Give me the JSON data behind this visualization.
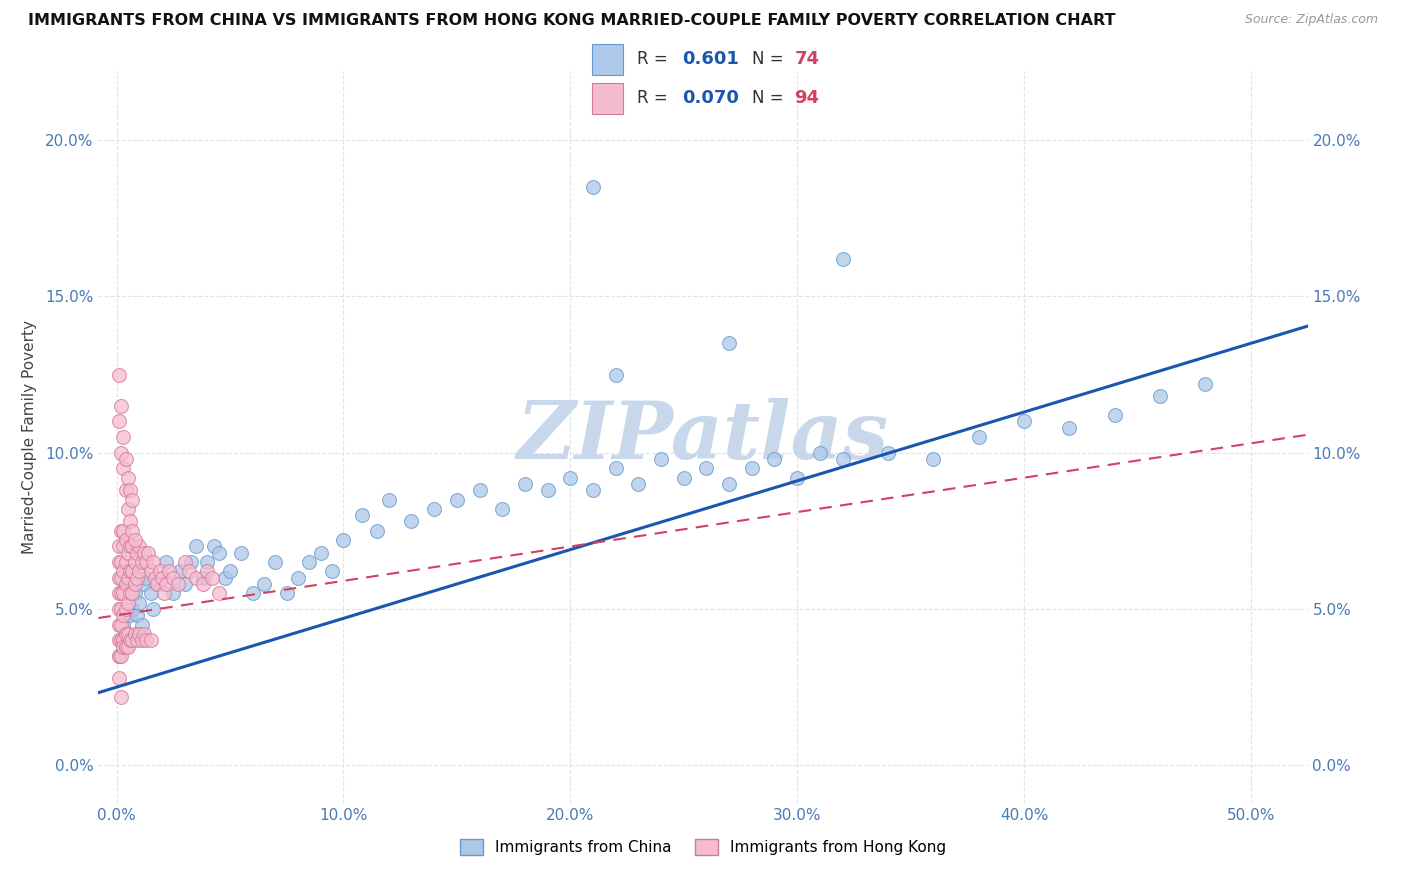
{
  "title": "IMMIGRANTS FROM CHINA VS IMMIGRANTS FROM HONG KONG MARRIED-COUPLE FAMILY POVERTY CORRELATION CHART",
  "source": "Source: ZipAtlas.com",
  "ylabel": "Married-Couple Family Poverty",
  "china_color": "#adc8e8",
  "china_edge_color": "#6699cc",
  "hk_color": "#f5bcd0",
  "hk_edge_color": "#d4789a",
  "china_R": 0.601,
  "china_N": 74,
  "hk_R": 0.07,
  "hk_N": 94,
  "legend_R_color": "#1a56b0",
  "legend_N_color": "#d44060",
  "regression_china_color": "#1a56b0",
  "regression_hk_color": "#d44060",
  "watermark": "ZIPatlas",
  "watermark_color": "#c8d8ea",
  "xlim": [
    -0.008,
    0.525
  ],
  "ylim": [
    -0.012,
    0.222
  ],
  "xtick_vals": [
    0.0,
    0.1,
    0.2,
    0.3,
    0.4,
    0.5
  ],
  "ytick_vals": [
    0.0,
    0.05,
    0.1,
    0.15,
    0.2
  ],
  "tick_color": "#4a7ab5",
  "grid_color": "#dde4ee",
  "china_x": [
    0.001,
    0.002,
    0.003,
    0.004,
    0.005,
    0.006,
    0.007,
    0.008,
    0.009,
    0.01,
    0.011,
    0.012,
    0.013,
    0.015,
    0.016,
    0.018,
    0.02,
    0.022,
    0.025,
    0.028,
    0.03,
    0.033,
    0.035,
    0.038,
    0.04,
    0.043,
    0.045,
    0.048,
    0.05,
    0.055,
    0.06,
    0.065,
    0.07,
    0.075,
    0.08,
    0.085,
    0.09,
    0.095,
    0.1,
    0.108,
    0.115,
    0.12,
    0.13,
    0.14,
    0.15,
    0.16,
    0.17,
    0.18,
    0.19,
    0.2,
    0.21,
    0.22,
    0.23,
    0.24,
    0.25,
    0.26,
    0.27,
    0.28,
    0.29,
    0.3,
    0.31,
    0.32,
    0.34,
    0.36,
    0.38,
    0.4,
    0.42,
    0.44,
    0.46,
    0.48,
    0.21,
    0.22,
    0.27,
    0.32
  ],
  "china_y": [
    0.035,
    0.04,
    0.045,
    0.038,
    0.042,
    0.048,
    0.05,
    0.055,
    0.048,
    0.052,
    0.045,
    0.058,
    0.06,
    0.055,
    0.05,
    0.058,
    0.06,
    0.065,
    0.055,
    0.062,
    0.058,
    0.065,
    0.07,
    0.06,
    0.065,
    0.07,
    0.068,
    0.06,
    0.062,
    0.068,
    0.055,
    0.058,
    0.065,
    0.055,
    0.06,
    0.065,
    0.068,
    0.062,
    0.072,
    0.08,
    0.075,
    0.085,
    0.078,
    0.082,
    0.085,
    0.088,
    0.082,
    0.09,
    0.088,
    0.092,
    0.088,
    0.095,
    0.09,
    0.098,
    0.092,
    0.095,
    0.09,
    0.095,
    0.098,
    0.092,
    0.1,
    0.098,
    0.1,
    0.098,
    0.105,
    0.11,
    0.108,
    0.112,
    0.118,
    0.122,
    0.185,
    0.125,
    0.135,
    0.162
  ],
  "hk_x": [
    0.001,
    0.001,
    0.001,
    0.001,
    0.001,
    0.001,
    0.001,
    0.001,
    0.002,
    0.002,
    0.002,
    0.002,
    0.002,
    0.002,
    0.002,
    0.002,
    0.003,
    0.003,
    0.003,
    0.003,
    0.003,
    0.003,
    0.003,
    0.004,
    0.004,
    0.004,
    0.004,
    0.004,
    0.004,
    0.005,
    0.005,
    0.005,
    0.005,
    0.005,
    0.006,
    0.006,
    0.006,
    0.006,
    0.007,
    0.007,
    0.007,
    0.007,
    0.008,
    0.008,
    0.008,
    0.009,
    0.009,
    0.009,
    0.01,
    0.01,
    0.01,
    0.011,
    0.011,
    0.012,
    0.012,
    0.013,
    0.013,
    0.014,
    0.015,
    0.015,
    0.016,
    0.017,
    0.018,
    0.019,
    0.02,
    0.021,
    0.022,
    0.023,
    0.025,
    0.027,
    0.03,
    0.032,
    0.035,
    0.038,
    0.04,
    0.042,
    0.045,
    0.001,
    0.001,
    0.002,
    0.002,
    0.003,
    0.003,
    0.004,
    0.004,
    0.005,
    0.005,
    0.006,
    0.006,
    0.007,
    0.007,
    0.008,
    0.001,
    0.002
  ],
  "hk_y": [
    0.045,
    0.05,
    0.055,
    0.06,
    0.065,
    0.07,
    0.04,
    0.035,
    0.045,
    0.05,
    0.055,
    0.06,
    0.065,
    0.075,
    0.04,
    0.035,
    0.048,
    0.055,
    0.062,
    0.07,
    0.075,
    0.04,
    0.038,
    0.05,
    0.058,
    0.065,
    0.072,
    0.042,
    0.038,
    0.052,
    0.06,
    0.068,
    0.042,
    0.038,
    0.055,
    0.062,
    0.07,
    0.04,
    0.055,
    0.062,
    0.07,
    0.04,
    0.058,
    0.065,
    0.042,
    0.06,
    0.068,
    0.04,
    0.062,
    0.07,
    0.042,
    0.065,
    0.04,
    0.068,
    0.042,
    0.065,
    0.04,
    0.068,
    0.062,
    0.04,
    0.065,
    0.06,
    0.058,
    0.062,
    0.06,
    0.055,
    0.058,
    0.062,
    0.06,
    0.058,
    0.065,
    0.062,
    0.06,
    0.058,
    0.062,
    0.06,
    0.055,
    0.11,
    0.125,
    0.1,
    0.115,
    0.095,
    0.105,
    0.088,
    0.098,
    0.082,
    0.092,
    0.078,
    0.088,
    0.075,
    0.085,
    0.072,
    0.028,
    0.022
  ]
}
